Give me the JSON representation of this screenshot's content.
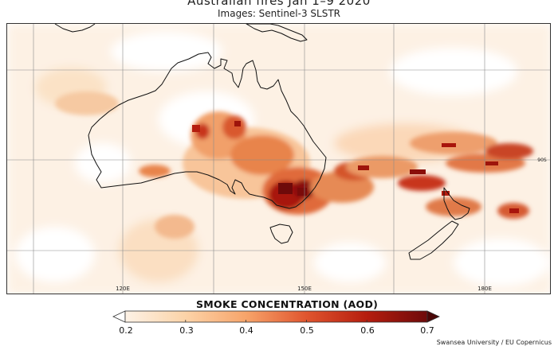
{
  "title": "Australian fires Jan 1–9 2020",
  "subtitle": "Images: Sentinel-3 SLSTR",
  "map": {
    "lon_labels": [
      {
        "key": "lon120",
        "text": "120E"
      },
      {
        "key": "lon150",
        "text": "150E"
      },
      {
        "key": "lon180",
        "text": "180E"
      }
    ],
    "lat_label": "90S"
  },
  "legend": {
    "title": "SMOKE CONCENTRATION (AOD)",
    "ticks": [
      "0.2",
      "0.3",
      "0.4",
      "0.5",
      "0.6",
      "0.7"
    ],
    "range": [
      0.2,
      0.7
    ],
    "colors": [
      "#fdf2e6",
      "#fcd3a8",
      "#f7a46a",
      "#e0552e",
      "#b51d0e",
      "#6e0a0a"
    ]
  },
  "credit": "Swansea University / EU Copernicus"
}
